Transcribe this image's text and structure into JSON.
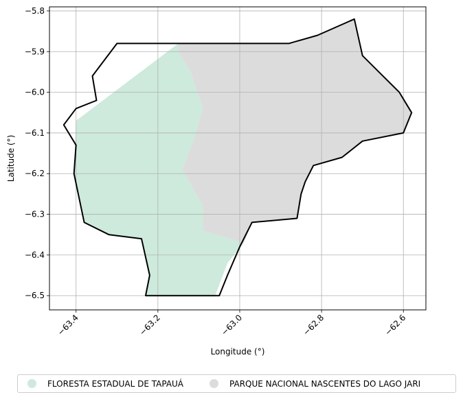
{
  "map": {
    "xlabel": "Longitude (°)",
    "ylabel": "Latitude (°)",
    "xlim": [
      -63.465,
      -62.545
    ],
    "ylim": [
      -6.535,
      -5.79
    ],
    "x_ticks": [
      -63.4,
      -63.2,
      -63.0,
      -62.8,
      -62.6
    ],
    "x_tick_labels": [
      "−63.4",
      "−63.2",
      "−63.0",
      "−62.8",
      "−62.6"
    ],
    "y_ticks": [
      -5.8,
      -5.9,
      -6.0,
      -6.1,
      -6.2,
      -6.3,
      -6.4,
      -6.5
    ],
    "y_tick_labels": [
      "−5.8",
      "−5.9",
      "−6.0",
      "−6.1",
      "−6.2",
      "−6.3",
      "−6.4",
      "−6.5"
    ],
    "grid": true
  },
  "legend": {
    "placement": "bottom",
    "items": [
      {
        "label": "FLORESTA ESTADUAL DE TAPAUÁ",
        "color": "#cdeadc"
      },
      {
        "label": "PARQUE NACIONAL NASCENTES DO LAGO JARI",
        "color": "#dcdcdc"
      }
    ]
  },
  "chart_data": {
    "type": "map",
    "xlabel": "Longitude (°)",
    "ylabel": "Latitude (°)",
    "xlim": [
      -63.465,
      -62.545
    ],
    "ylim": [
      -6.535,
      -5.79
    ],
    "grid": true,
    "legend_placement": "bottom",
    "regions": [
      {
        "name": "FLORESTA ESTADUAL DE TAPAUÁ",
        "color": "#cdeadc",
        "lonlat": [
          [
            -63.15,
            -5.88
          ],
          [
            -63.4,
            -6.07
          ],
          [
            -63.405,
            -6.2
          ],
          [
            -63.38,
            -6.32
          ],
          [
            -63.32,
            -6.35
          ],
          [
            -63.24,
            -6.36
          ],
          [
            -63.22,
            -6.45
          ],
          [
            -63.23,
            -6.5
          ],
          [
            -63.06,
            -6.5
          ],
          [
            -63.03,
            -6.42
          ],
          [
            -62.99,
            -6.37
          ],
          [
            -63.09,
            -6.34
          ],
          [
            -63.09,
            -6.28
          ],
          [
            -63.14,
            -6.19
          ],
          [
            -63.11,
            -6.11
          ],
          [
            -63.09,
            -6.04
          ],
          [
            -63.12,
            -5.95
          ],
          [
            -63.15,
            -5.9
          ]
        ]
      },
      {
        "name": "PARQUE NACIONAL NASCENTES DO LAGO JARI",
        "color": "#dcdcdc",
        "lonlat": [
          [
            -63.15,
            -5.88
          ],
          [
            -62.87,
            -5.88
          ],
          [
            -62.81,
            -5.86
          ],
          [
            -62.72,
            -5.82
          ],
          [
            -62.7,
            -5.91
          ],
          [
            -62.66,
            -5.95
          ],
          [
            -62.61,
            -6.0
          ],
          [
            -62.58,
            -6.05
          ],
          [
            -62.6,
            -6.1
          ],
          [
            -62.7,
            -6.12
          ],
          [
            -62.75,
            -6.16
          ],
          [
            -62.82,
            -6.18
          ],
          [
            -62.84,
            -6.22
          ],
          [
            -62.85,
            -6.25
          ],
          [
            -62.86,
            -6.31
          ],
          [
            -62.97,
            -6.32
          ],
          [
            -62.99,
            -6.37
          ],
          [
            -63.09,
            -6.34
          ],
          [
            -63.09,
            -6.28
          ],
          [
            -63.14,
            -6.19
          ],
          [
            -63.11,
            -6.11
          ],
          [
            -63.09,
            -6.04
          ],
          [
            -63.12,
            -5.95
          ],
          [
            -63.15,
            -5.9
          ]
        ]
      }
    ],
    "outline": {
      "color": "#000000",
      "lonlat": [
        [
          -63.3,
          -5.88
        ],
        [
          -62.88,
          -5.88
        ],
        [
          -62.81,
          -5.86
        ],
        [
          -62.72,
          -5.82
        ],
        [
          -62.7,
          -5.91
        ],
        [
          -62.66,
          -5.95
        ],
        [
          -62.61,
          -6.0
        ],
        [
          -62.58,
          -6.05
        ],
        [
          -62.6,
          -6.1
        ],
        [
          -62.7,
          -6.12
        ],
        [
          -62.75,
          -6.16
        ],
        [
          -62.82,
          -6.18
        ],
        [
          -62.84,
          -6.22
        ],
        [
          -62.85,
          -6.25
        ],
        [
          -62.86,
          -6.31
        ],
        [
          -62.97,
          -6.32
        ],
        [
          -63.0,
          -6.38
        ],
        [
          -63.03,
          -6.45
        ],
        [
          -63.05,
          -6.5
        ],
        [
          -63.23,
          -6.5
        ],
        [
          -63.22,
          -6.45
        ],
        [
          -63.24,
          -6.36
        ],
        [
          -63.32,
          -6.35
        ],
        [
          -63.38,
          -6.32
        ],
        [
          -63.405,
          -6.2
        ],
        [
          -63.4,
          -6.13
        ],
        [
          -63.43,
          -6.08
        ],
        [
          -63.4,
          -6.04
        ],
        [
          -63.35,
          -6.02
        ],
        [
          -63.36,
          -5.96
        ],
        [
          -63.33,
          -5.92
        ],
        [
          -63.3,
          -5.88
        ]
      ]
    }
  }
}
